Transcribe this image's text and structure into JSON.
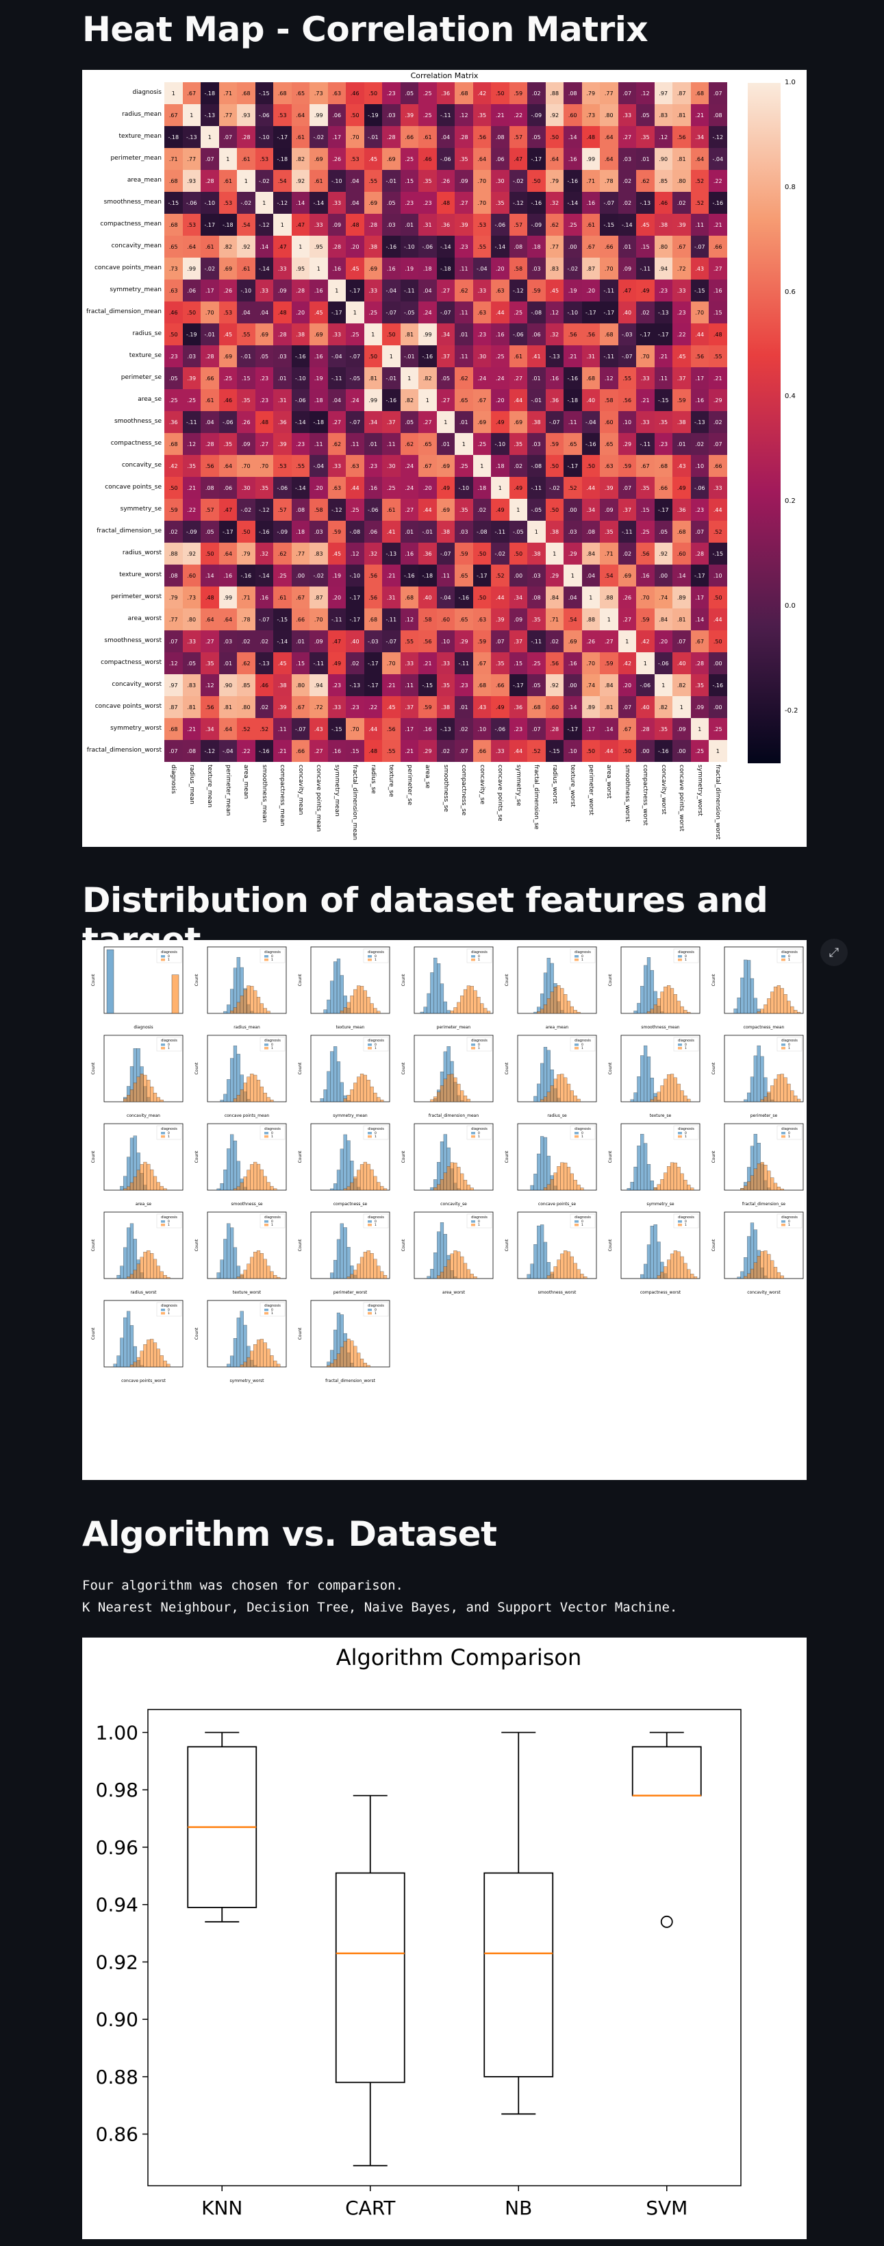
{
  "sections": {
    "heatmap_title": "Heat Map - Correlation Matrix",
    "dist_title": "Distribution of dataset features and target",
    "algo_title": "Algorithm vs. Dataset",
    "algo_text_line1": "Four algorithm was chosen for comparison.",
    "algo_text_line2": "K Nearest Neighbour, Decision Tree, Naive Bayes, and Support Vector Machine."
  },
  "heatmap": {
    "title": "Correlation Matrix",
    "features": [
      "diagnosis",
      "radius_mean",
      "texture_mean",
      "perimeter_mean",
      "area_mean",
      "smoothness_mean",
      "compactness_mean",
      "concavity_mean",
      "concave points_mean",
      "symmetry_mean",
      "fractal_dimension_mean",
      "radius_se",
      "texture_se",
      "perimeter_se",
      "area_se",
      "smoothness_se",
      "compactness_se",
      "concavity_se",
      "concave points_se",
      "symmetry_se",
      "fractal_dimension_se",
      "radius_worst",
      "texture_worst",
      "perimeter_worst",
      "area_worst",
      "smoothness_worst",
      "compactness_worst",
      "concavity_worst",
      "concave points_worst",
      "symmetry_worst",
      "fractal_dimension_worst"
    ],
    "colorbar_ticks": [
      "1.0",
      "0.8",
      "0.6",
      "0.4",
      "0.2",
      "0.0",
      "-0.2"
    ],
    "colormap": [
      "#03051a",
      "#4c1d4b",
      "#a11a5b",
      "#e83f3f",
      "#f69c73",
      "#faebdd"
    ]
  },
  "distribution": {
    "legend_title": "diagnosis",
    "legend_labels": [
      "0",
      "1"
    ],
    "colors": {
      "benign": "#1f77b4",
      "malignant": "#ff7f0e"
    },
    "panels": [
      "diagnosis",
      "radius_mean",
      "texture_mean",
      "perimeter_mean",
      "area_mean",
      "smoothness_mean",
      "compactness_mean",
      "concavity_mean",
      "concave points_mean",
      "symmetry_mean",
      "fractal_dimension_mean",
      "radius_se",
      "texture_se",
      "perimeter_se",
      "area_se",
      "smoothness_se",
      "compactness_se",
      "concavity_se",
      "concave points_se",
      "symmetry_se",
      "fractal_dimension_se",
      "radius_worst",
      "texture_worst",
      "perimeter_worst",
      "area_worst",
      "smoothness_worst",
      "compactness_worst",
      "concavity_worst",
      "concave points_worst",
      "symmetry_worst",
      "fractal_dimension_worst"
    ],
    "ylabel": "Count"
  },
  "chart_data": {
    "type": "box",
    "title": "Algorithm Comparison",
    "categories": [
      "KNN",
      "CART",
      "NB",
      "SVM"
    ],
    "ylim": [
      0.842,
      1.008
    ],
    "yticks": [
      "1.00",
      "0.98",
      "0.96",
      "0.94",
      "0.92",
      "0.90",
      "0.88",
      "0.86"
    ],
    "ytick_values": [
      1.0,
      0.98,
      0.96,
      0.94,
      0.92,
      0.9,
      0.88,
      0.86
    ],
    "boxes": [
      {
        "whislo": 0.934,
        "q1": 0.939,
        "med": 0.967,
        "q3": 0.995,
        "whishi": 1.0,
        "fliers": []
      },
      {
        "whislo": 0.849,
        "q1": 0.878,
        "med": 0.923,
        "q3": 0.951,
        "whishi": 0.978,
        "fliers": []
      },
      {
        "whislo": 0.867,
        "q1": 0.88,
        "med": 0.923,
        "q3": 0.951,
        "whishi": 1.0,
        "fliers": []
      },
      {
        "whislo": 0.978,
        "q1": 0.978,
        "med": 0.978,
        "q3": 0.995,
        "whishi": 1.0,
        "fliers": [
          0.934
        ]
      }
    ],
    "median_color": "#ff7f0e",
    "grid": false
  }
}
